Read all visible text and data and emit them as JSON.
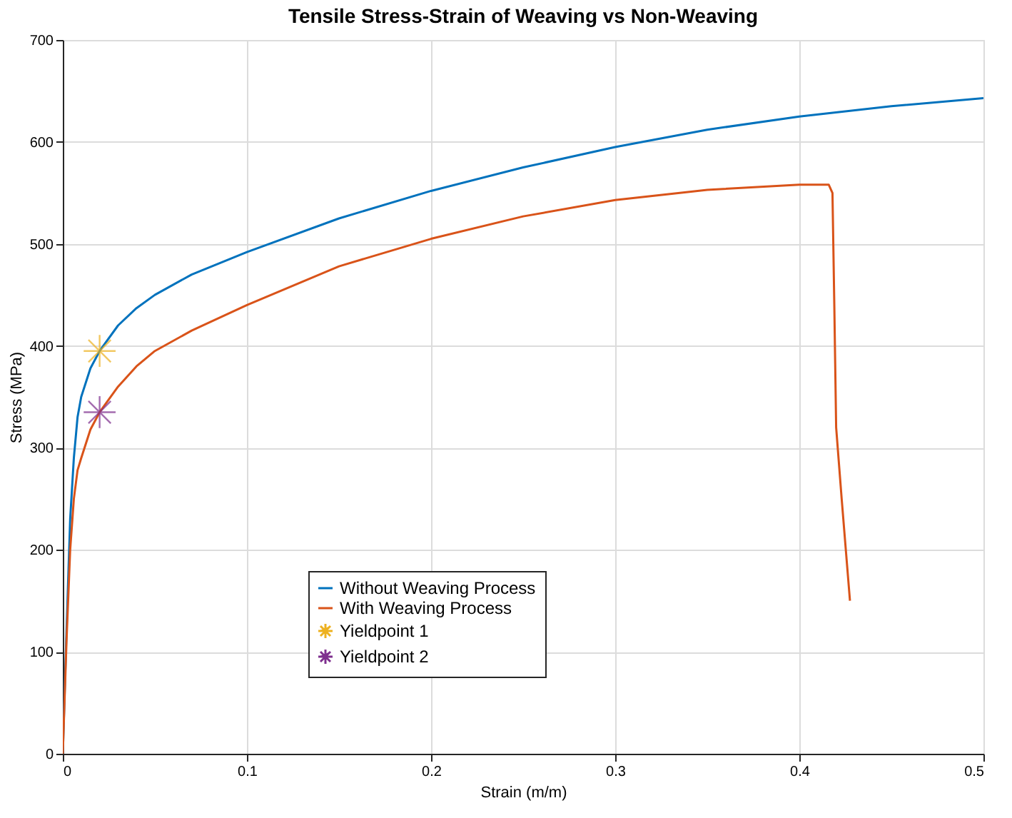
{
  "chart_data": {
    "type": "line",
    "title": "Tensile Stress-Strain of Weaving vs Non-Weaving",
    "xlabel": "Strain (m/m)",
    "ylabel": "Stress (MPa)",
    "xlim": [
      0,
      0.5
    ],
    "xticks": [
      0,
      0.1,
      0.2,
      0.3,
      0.4,
      0.5
    ],
    "ylim": [
      0,
      700
    ],
    "yticks": [
      0,
      100,
      200,
      300,
      400,
      500,
      600,
      700
    ],
    "grid": true,
    "legend": "bottom",
    "series": [
      {
        "name": "Without Weaving Process",
        "marker": "none",
        "color": "#0072bd",
        "x": [
          0,
          0.002,
          0.004,
          0.006,
          0.008,
          0.01,
          0.015,
          0.02,
          0.03,
          0.04,
          0.05,
          0.07,
          0.1,
          0.15,
          0.2,
          0.25,
          0.3,
          0.35,
          0.4,
          0.45,
          0.5
        ],
        "values": [
          0,
          120,
          230,
          290,
          330,
          350,
          378,
          395,
          420,
          437,
          450,
          470,
          492,
          525,
          552,
          575,
          595,
          612,
          625,
          635,
          643
        ]
      },
      {
        "name": "With Weaving Process",
        "marker": "none",
        "color": "#d95319",
        "x": [
          0,
          0.002,
          0.004,
          0.006,
          0.008,
          0.01,
          0.015,
          0.02,
          0.03,
          0.04,
          0.05,
          0.07,
          0.1,
          0.15,
          0.2,
          0.25,
          0.3,
          0.35,
          0.4,
          0.416,
          0.418,
          0.419,
          0.42,
          0.423,
          0.4275
        ],
        "values": [
          0,
          110,
          200,
          250,
          278,
          290,
          318,
          335,
          360,
          380,
          395,
          415,
          440,
          478,
          505,
          527,
          543,
          553,
          558,
          558,
          550,
          440,
          320,
          250,
          150
        ]
      },
      {
        "name": "Yieldpoint 1",
        "type": "scatter",
        "marker": "cross",
        "color": "#edb120",
        "x": [
          0.02
        ],
        "values": [
          395
        ]
      },
      {
        "name": "Yieldpoint 2",
        "type": "scatter",
        "marker": "cross",
        "color": "#7e2f8e",
        "x": [
          0.02
        ],
        "values": [
          335
        ]
      }
    ]
  }
}
